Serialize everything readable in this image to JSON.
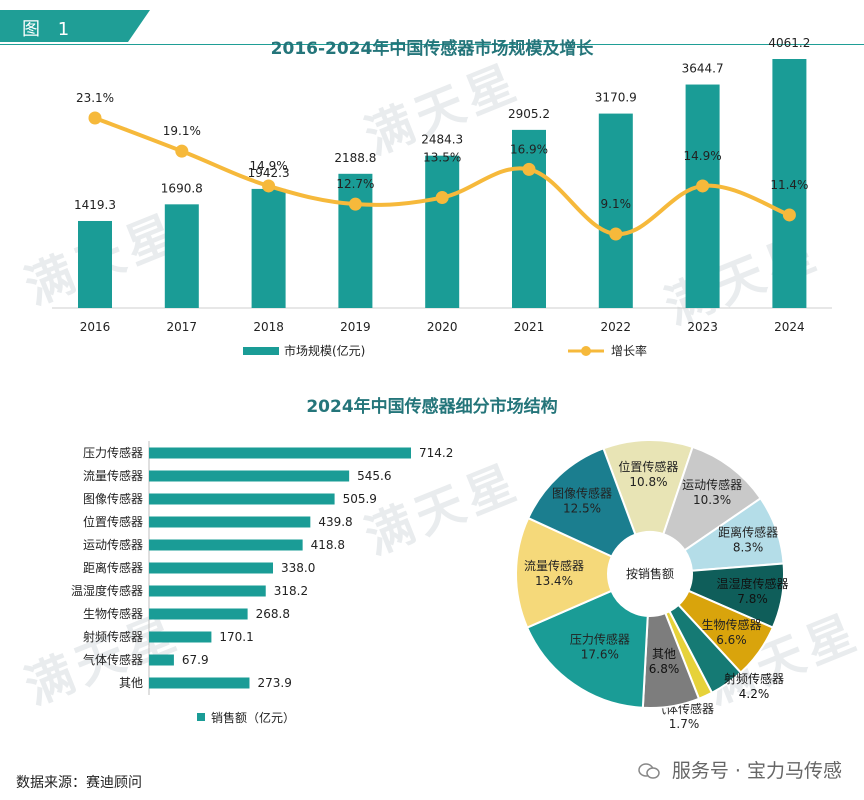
{
  "figure_label": "图 1",
  "watermark_text": "满天星",
  "source_text": "数据来源：赛迪顾问",
  "service_text": "服务号 · 宝力马传感",
  "colors": {
    "bar": "#1a9c96",
    "line": "#f6b93b",
    "header": "#1f9e96",
    "title": "#24757a"
  },
  "chart_data": [
    {
      "type": "bar",
      "title": "2016-2024年中国传感器市场规模及增长",
      "categories": [
        "2016",
        "2017",
        "2018",
        "2019",
        "2020",
        "2021",
        "2022",
        "2023",
        "2024"
      ],
      "series": [
        {
          "name": "市场规模(亿元)",
          "values": [
            1419.3,
            1690.8,
            1942.3,
            2188.8,
            2484.3,
            2905.2,
            3170.9,
            3644.7,
            4061.2
          ],
          "labels": [
            "1419.3",
            "1690.8",
            "1942.3",
            "2188.8",
            "2484.3",
            "2905.2",
            "3170.9",
            "3644.7",
            "4061.2"
          ]
        },
        {
          "name": "增长率",
          "type": "line",
          "values": [
            23.1,
            19.1,
            14.9,
            12.7,
            13.5,
            16.9,
            9.1,
            14.9,
            11.4
          ],
          "labels": [
            "23.1%",
            "19.1%",
            "14.9%",
            "12.7%",
            "13.5%",
            "16.9%",
            "9.1%",
            "14.9%",
            "11.4%"
          ]
        }
      ],
      "ylim": [
        0,
        4500
      ],
      "legend": "bottom"
    },
    {
      "type": "bar",
      "orientation": "horizontal",
      "title": "2024年中国传感器细分市场结构",
      "categories": [
        "压力传感器",
        "流量传感器",
        "图像传感器",
        "位置传感器",
        "运动传感器",
        "距离传感器",
        "温湿度传感器",
        "生物传感器",
        "射频传感器",
        "气体传感器",
        "其他"
      ],
      "series": [
        {
          "name": "销售额（亿元）",
          "values": [
            714.2,
            545.6,
            505.9,
            439.8,
            418.8,
            338.0,
            318.2,
            268.8,
            170.1,
            67.9,
            273.9
          ],
          "labels": [
            "714.2",
            "545.6",
            "505.9",
            "439.8",
            "418.8",
            "338.0",
            "318.2",
            "268.8",
            "170.1",
            "67.9",
            "273.9"
          ]
        }
      ],
      "legend": "bottom"
    },
    {
      "type": "pie",
      "center_label": "按销售额",
      "slices": [
        {
          "name": "位置传感器",
          "value": 10.8,
          "label": "10.8%",
          "color": "#e8e4b5"
        },
        {
          "name": "运动传感器",
          "value": 10.3,
          "label": "10.3%",
          "color": "#c9c9c9"
        },
        {
          "name": "距离传感器",
          "value": 8.3,
          "label": "8.3%",
          "color": "#b4dde8"
        },
        {
          "name": "温湿度传感器",
          "value": 7.8,
          "label": "7.8%",
          "color": "#0f5e5a"
        },
        {
          "name": "生物传感器",
          "value": 6.6,
          "label": "6.6%",
          "color": "#d9a40c"
        },
        {
          "name": "射频传感器",
          "value": 4.2,
          "label": "4.2%",
          "color": "#157a74"
        },
        {
          "name": "气体传感器",
          "value": 1.7,
          "label": "1.7%",
          "color": "#e6d23a"
        },
        {
          "name": "其他",
          "value": 6.8,
          "label": "6.8%",
          "color": "#7d7d7d"
        },
        {
          "name": "压力传感器",
          "value": 17.6,
          "label": "17.6%",
          "color": "#1a9c96"
        },
        {
          "name": "流量传感器",
          "value": 13.4,
          "label": "13.4%",
          "color": "#f5d97a"
        },
        {
          "name": "图像传感器",
          "value": 12.5,
          "label": "12.5%",
          "color": "#1b7e8f"
        }
      ]
    }
  ]
}
